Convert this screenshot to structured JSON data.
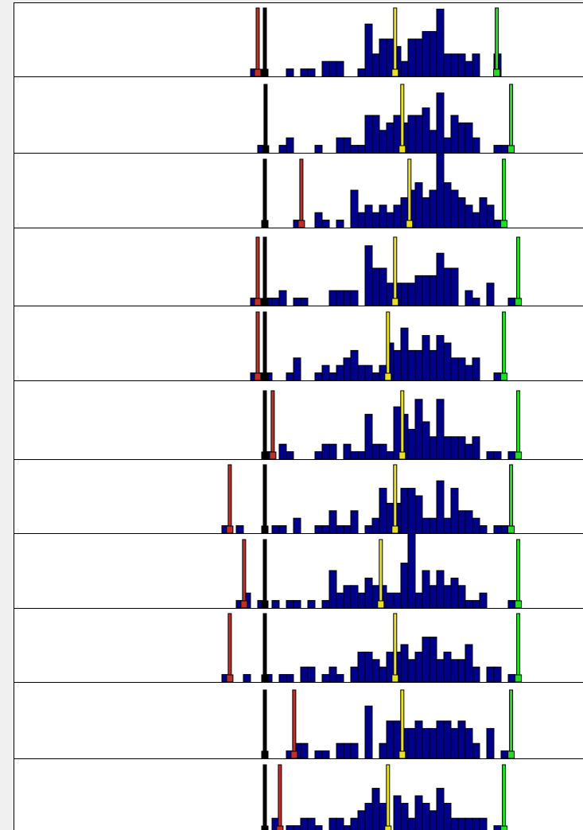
{
  "chart_data": [
    {
      "type": "histogram",
      "xlim": [
        0,
        80
      ],
      "ylim": [
        0,
        10
      ],
      "color": "#00008b",
      "bins": [
        29,
        30,
        31,
        32,
        33,
        34,
        35,
        36,
        37,
        38,
        39,
        40,
        41,
        42,
        43,
        44,
        45,
        46,
        47,
        48,
        49,
        50,
        51,
        52,
        53,
        54,
        55,
        56,
        57,
        58,
        59,
        60,
        61,
        62,
        63,
        64,
        65,
        66,
        67,
        68,
        69,
        70,
        71,
        72,
        73
      ],
      "counts": [
        0,
        0,
        0,
        0,
        1,
        0,
        0,
        0,
        0,
        1,
        0,
        1,
        1,
        0,
        2,
        2,
        2,
        0,
        0,
        1,
        7,
        3,
        5,
        5,
        4,
        2,
        5,
        5,
        6,
        6,
        9,
        3,
        3,
        3,
        2,
        3,
        0,
        0,
        3,
        0,
        0,
        0,
        0,
        0
      ],
      "markers": [
        {
          "color": "#c0302a",
          "x": 34
        },
        {
          "color": "#000000",
          "x": 35
        },
        {
          "color": "#e8e020",
          "x": 53.2
        },
        {
          "color": "#22dd22",
          "x": 67.4
        }
      ]
    },
    {
      "type": "histogram",
      "xlim": [
        0,
        80
      ],
      "ylim": [
        0,
        10
      ],
      "color": "#00008b",
      "bins": [
        29,
        30,
        31,
        32,
        33,
        34,
        35,
        36,
        37,
        38,
        39,
        40,
        41,
        42,
        43,
        44,
        45,
        46,
        47,
        48,
        49,
        50,
        51,
        52,
        53,
        54,
        55,
        56,
        57,
        58,
        59,
        60,
        61,
        62,
        63,
        64,
        65,
        66,
        67,
        68,
        69,
        70,
        71,
        72,
        73
      ],
      "counts": [
        0,
        0,
        0,
        0,
        0,
        1,
        0,
        0,
        1,
        2,
        0,
        0,
        0,
        1,
        0,
        0,
        2,
        2,
        1,
        1,
        5,
        5,
        3,
        4,
        5,
        4,
        5,
        5,
        6,
        3,
        8,
        2,
        5,
        4,
        4,
        2,
        0,
        0,
        1,
        1,
        0,
        0,
        0,
        0
      ],
      "markers": [
        {
          "color": "#000000",
          "x": 35.1
        },
        {
          "color": "#e8e020",
          "x": 54.2
        },
        {
          "color": "#22dd22",
          "x": 69.4
        }
      ]
    },
    {
      "type": "histogram",
      "xlim": [
        0,
        80
      ],
      "ylim": [
        0,
        10
      ],
      "color": "#00008b",
      "bins": [
        29,
        30,
        31,
        32,
        33,
        34,
        35,
        36,
        37,
        38,
        39,
        40,
        41,
        42,
        43,
        44,
        45,
        46,
        47,
        48,
        49,
        50,
        51,
        52,
        53,
        54,
        55,
        56,
        57,
        58,
        59,
        60,
        61,
        62,
        63,
        64,
        65,
        66,
        67,
        68,
        69,
        70,
        71,
        72,
        73
      ],
      "counts": [
        0,
        0,
        0,
        0,
        0,
        0,
        0,
        0,
        0,
        0,
        1,
        0,
        0,
        2,
        1,
        0,
        1,
        0,
        5,
        2,
        3,
        2,
        3,
        2,
        3,
        4,
        5,
        6,
        4,
        5,
        10,
        6,
        5,
        4,
        3,
        2,
        4,
        3,
        1,
        0,
        0,
        0,
        0,
        0
      ],
      "markers": [
        {
          "color": "#c0302a",
          "x": 40.1
        },
        {
          "color": "#000000",
          "x": 35
        },
        {
          "color": "#e8e020",
          "x": 55.2
        },
        {
          "color": "#22dd22",
          "x": 68.4
        }
      ]
    },
    {
      "type": "histogram",
      "xlim": [
        0,
        80
      ],
      "ylim": [
        0,
        10
      ],
      "color": "#00008b",
      "bins": [
        29,
        30,
        31,
        32,
        33,
        34,
        35,
        36,
        37,
        38,
        39,
        40,
        41,
        42,
        43,
        44,
        45,
        46,
        47,
        48,
        49,
        50,
        51,
        52,
        53,
        54,
        55,
        56,
        57,
        58,
        59,
        60,
        61,
        62,
        63,
        64,
        65,
        66,
        67,
        68,
        69,
        70,
        71,
        72,
        73
      ],
      "counts": [
        0,
        0,
        0,
        0,
        1,
        0,
        1,
        1,
        2,
        0,
        1,
        1,
        0,
        0,
        0,
        2,
        2,
        2,
        2,
        0,
        8,
        5,
        5,
        3,
        3,
        3,
        3,
        4,
        4,
        4,
        7,
        5,
        5,
        0,
        2,
        1,
        0,
        3,
        0,
        0,
        1,
        0,
        0,
        0
      ],
      "markers": [
        {
          "color": "#c0302a",
          "x": 34
        },
        {
          "color": "#000000",
          "x": 35
        },
        {
          "color": "#e8e020",
          "x": 53.2
        },
        {
          "color": "#22dd22",
          "x": 70.4
        }
      ]
    },
    {
      "type": "histogram",
      "xlim": [
        0,
        80
      ],
      "ylim": [
        0,
        10
      ],
      "color": "#00008b",
      "bins": [
        29,
        30,
        31,
        32,
        33,
        34,
        35,
        36,
        37,
        38,
        39,
        40,
        41,
        42,
        43,
        44,
        45,
        46,
        47,
        48,
        49,
        50,
        51,
        52,
        53,
        54,
        55,
        56,
        57,
        58,
        59,
        60,
        61,
        62,
        63,
        64,
        65,
        66,
        67,
        68,
        69,
        70,
        71,
        72,
        73
      ],
      "counts": [
        0,
        0,
        0,
        0,
        1,
        1,
        1,
        0,
        0,
        1,
        3,
        0,
        0,
        1,
        2,
        1,
        2,
        3,
        4,
        2,
        2,
        1,
        2,
        5,
        4,
        7,
        4,
        4,
        6,
        4,
        6,
        5,
        3,
        3,
        2,
        3,
        0,
        0,
        1,
        0,
        0,
        0,
        0,
        0
      ],
      "markers": [
        {
          "color": "#c0302a",
          "x": 34
        },
        {
          "color": "#000000",
          "x": 35
        },
        {
          "color": "#e8e020",
          "x": 52.2
        },
        {
          "color": "#22dd22",
          "x": 68.4
        }
      ]
    },
    {
      "type": "histogram",
      "xlim": [
        0,
        80
      ],
      "ylim": [
        0,
        10
      ],
      "color": "#00008b",
      "bins": [
        29,
        30,
        31,
        32,
        33,
        34,
        35,
        36,
        37,
        38,
        39,
        40,
        41,
        42,
        43,
        44,
        45,
        46,
        47,
        48,
        49,
        50,
        51,
        52,
        53,
        54,
        55,
        56,
        57,
        58,
        59,
        60,
        61,
        62,
        63,
        64,
        65,
        66,
        67,
        68,
        69,
        70,
        71,
        72,
        73
      ],
      "counts": [
        0,
        0,
        0,
        0,
        0,
        0,
        1,
        0,
        2,
        1,
        0,
        0,
        0,
        1,
        2,
        2,
        0,
        2,
        1,
        1,
        6,
        2,
        2,
        1,
        7,
        6,
        4,
        8,
        5,
        3,
        8,
        3,
        3,
        3,
        2,
        3,
        0,
        1,
        1,
        0,
        1,
        0,
        0,
        0
      ],
      "markers": [
        {
          "color": "#c0302a",
          "x": 36.1
        },
        {
          "color": "#000000",
          "x": 35
        },
        {
          "color": "#e8e020",
          "x": 54.2
        },
        {
          "color": "#22dd22",
          "x": 70.4
        }
      ]
    },
    {
      "type": "histogram",
      "xlim": [
        0,
        80
      ],
      "ylim": [
        0,
        10
      ],
      "color": "#00008b",
      "bins": [
        29,
        30,
        31,
        32,
        33,
        34,
        35,
        36,
        37,
        38,
        39,
        40,
        41,
        42,
        43,
        44,
        45,
        46,
        47,
        48,
        49,
        50,
        51,
        52,
        53,
        54,
        55,
        56,
        57,
        58,
        59,
        60,
        61,
        62,
        63,
        64,
        65,
        66,
        67,
        68,
        69,
        70,
        71,
        72,
        73
      ],
      "counts": [
        1,
        0,
        1,
        0,
        0,
        0,
        0,
        1,
        1,
        0,
        2,
        0,
        0,
        1,
        1,
        3,
        1,
        1,
        3,
        0,
        1,
        2,
        6,
        4,
        4,
        6,
        6,
        5,
        2,
        2,
        7,
        2,
        6,
        3,
        3,
        2,
        1,
        0,
        1,
        1,
        0,
        0,
        0,
        0
      ],
      "markers": [
        {
          "color": "#c0302a",
          "x": 30.1
        },
        {
          "color": "#000000",
          "x": 35
        },
        {
          "color": "#e8e020",
          "x": 53.2
        },
        {
          "color": "#22dd22",
          "x": 69.4
        }
      ]
    },
    {
      "type": "histogram",
      "xlim": [
        0,
        80
      ],
      "ylim": [
        0,
        10
      ],
      "color": "#00008b",
      "bins": [
        29,
        30,
        31,
        32,
        33,
        34,
        35,
        36,
        37,
        38,
        39,
        40,
        41,
        42,
        43,
        44,
        45,
        46,
        47,
        48,
        49,
        50,
        51,
        52,
        53,
        54,
        55,
        56,
        57,
        58,
        59,
        60,
        61,
        62,
        63,
        64,
        65,
        66,
        67,
        68,
        69,
        70,
        71,
        72,
        73
      ],
      "counts": [
        0,
        0,
        1,
        2,
        0,
        1,
        0,
        1,
        0,
        1,
        1,
        0,
        1,
        0,
        1,
        5,
        2,
        3,
        3,
        2,
        4,
        3,
        3,
        2,
        2,
        6,
        10,
        2,
        5,
        3,
        5,
        3,
        4,
        3,
        1,
        1,
        2,
        0,
        0,
        0,
        1,
        0,
        0,
        0
      ],
      "markers": [
        {
          "color": "#c0302a",
          "x": 32.1
        },
        {
          "color": "#000000",
          "x": 35
        },
        {
          "color": "#e8e020",
          "x": 51.2
        },
        {
          "color": "#22dd22",
          "x": 70.4
        }
      ]
    },
    {
      "type": "histogram",
      "xlim": [
        0,
        80
      ],
      "ylim": [
        0,
        10
      ],
      "color": "#00008b",
      "bins": [
        29,
        30,
        31,
        32,
        33,
        34,
        35,
        36,
        37,
        38,
        39,
        40,
        41,
        42,
        43,
        44,
        45,
        46,
        47,
        48,
        49,
        50,
        51,
        52,
        53,
        54,
        55,
        56,
        57,
        58,
        59,
        60,
        61,
        62,
        63,
        64,
        65,
        66,
        67,
        68,
        69,
        70,
        71,
        72,
        73
      ],
      "counts": [
        1,
        0,
        0,
        1,
        0,
        0,
        1,
        0,
        1,
        1,
        0,
        2,
        2,
        0,
        1,
        2,
        1,
        0,
        2,
        4,
        4,
        3,
        2,
        4,
        4,
        5,
        3,
        4,
        6,
        6,
        3,
        4,
        3,
        3,
        5,
        2,
        0,
        2,
        2,
        0,
        1,
        0,
        0,
        0
      ],
      "markers": [
        {
          "color": "#c0302a",
          "x": 30.1
        },
        {
          "color": "#000000",
          "x": 35
        },
        {
          "color": "#e8e020",
          "x": 53.2
        },
        {
          "color": "#22dd22",
          "x": 70.4
        }
      ]
    },
    {
      "type": "histogram",
      "xlim": [
        0,
        80
      ],
      "ylim": [
        0,
        10
      ],
      "color": "#00008b",
      "bins": [
        29,
        30,
        31,
        32,
        33,
        34,
        35,
        36,
        37,
        38,
        39,
        40,
        41,
        42,
        43,
        44,
        45,
        46,
        47,
        48,
        49,
        50,
        51,
        52,
        53,
        54,
        55,
        56,
        57,
        58,
        59,
        60,
        61,
        62,
        63,
        64,
        65,
        66,
        67,
        68,
        69,
        70,
        71,
        72,
        73
      ],
      "counts": [
        0,
        0,
        0,
        0,
        0,
        0,
        0,
        0,
        0,
        1,
        2,
        2,
        0,
        1,
        1,
        0,
        2,
        2,
        2,
        0,
        7,
        0,
        2,
        5,
        5,
        4,
        4,
        5,
        4,
        4,
        5,
        5,
        4,
        5,
        4,
        2,
        0,
        4,
        0,
        1,
        0,
        0,
        0,
        0
      ],
      "markers": [
        {
          "color": "#c0302a",
          "x": 39.1
        },
        {
          "color": "#000000",
          "x": 35
        },
        {
          "color": "#e8e020",
          "x": 54.2
        },
        {
          "color": "#22dd22",
          "x": 69.4
        }
      ]
    },
    {
      "type": "histogram",
      "xlim": [
        0,
        80
      ],
      "ylim": [
        0,
        10
      ],
      "color": "#00008b",
      "bins": [
        29,
        30,
        31,
        32,
        33,
        34,
        35,
        36,
        37,
        38,
        39,
        40,
        41,
        42,
        43,
        44,
        45,
        46,
        47,
        48,
        49,
        50,
        51,
        52,
        53,
        54,
        55,
        56,
        57,
        58,
        59,
        60,
        61,
        62,
        63,
        64,
        65,
        66,
        67,
        68,
        69,
        70,
        71,
        72,
        73
      ],
      "counts": [
        0,
        0,
        0,
        0,
        0,
        0,
        0,
        2,
        0,
        1,
        1,
        2,
        2,
        1,
        0,
        2,
        2,
        1,
        2,
        3,
        4,
        6,
        4,
        0,
        5,
        4,
        2,
        5,
        4,
        3,
        6,
        4,
        2,
        2,
        2,
        2,
        2,
        0,
        1,
        0,
        0,
        0,
        0,
        0
      ],
      "markers": [
        {
          "color": "#c0302a",
          "x": 37.1
        },
        {
          "color": "#000000",
          "x": 35
        },
        {
          "color": "#e8e020",
          "x": 52.2
        },
        {
          "color": "#22dd22",
          "x": 68.4
        }
      ]
    }
  ]
}
